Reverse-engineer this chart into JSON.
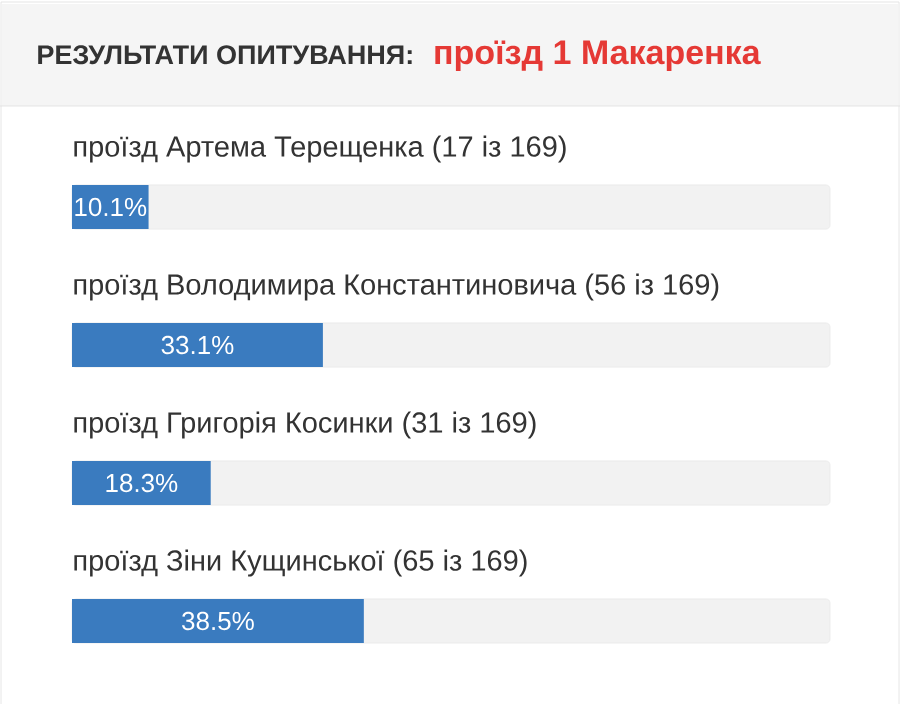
{
  "chart_data": {
    "type": "bar",
    "orientation": "horizontal",
    "title": "РЕЗУЛЬТАТИ ОПИТУВАННЯ:",
    "subtitle": "проїзд 1 Макаренка",
    "categories": [
      "проїзд Артема Терещенка (17 із 169)",
      "проїзд Володимира Константиновича (56 із 169)",
      "проїзд Григорія Косинки (31 із 169)",
      "проїзд Зіни Кущинської (65 із 169)"
    ],
    "values": [
      10.1,
      33.1,
      18.3,
      38.5
    ],
    "value_labels": [
      "10.1%",
      "33.1%",
      "18.3%",
      "38.5%"
    ],
    "color": "#3a7bbf",
    "xlim": [
      0,
      100
    ]
  }
}
